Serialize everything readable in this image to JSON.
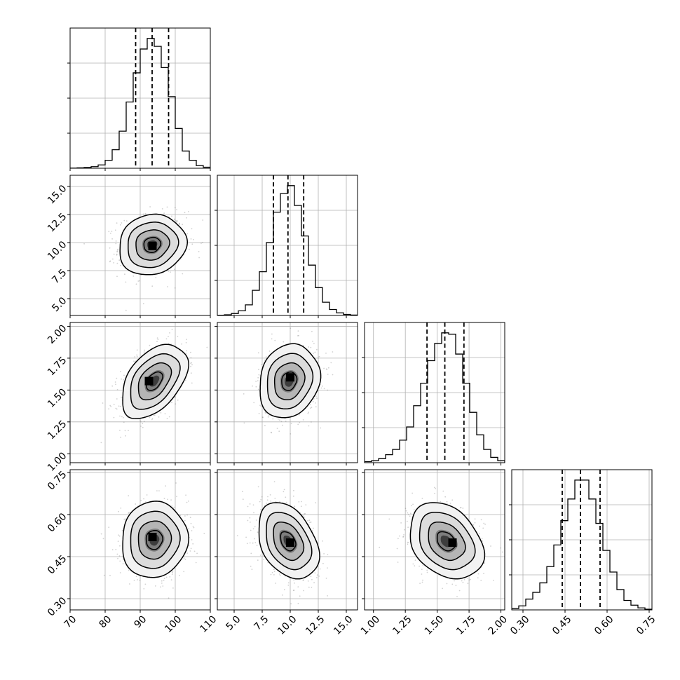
{
  "chart_data": {
    "type": "corner",
    "grid": true,
    "parameters": [
      {
        "range": [
          70,
          110
        ],
        "ticks": [
          "70",
          "80",
          "90",
          "100",
          "110"
        ],
        "tick_values": [
          70,
          80,
          90,
          100,
          110
        ],
        "quantiles": [
          88.7,
          93.4,
          98.1
        ],
        "histogram": {
          "bin_edges": [
            70,
            72,
            74,
            76,
            78,
            80,
            82,
            84,
            86,
            88,
            90,
            92,
            94,
            96,
            98,
            100,
            102,
            104,
            106,
            108,
            110
          ],
          "heights": [
            0.1,
            0.3,
            0.6,
            1.2,
            2.5,
            6.0,
            14.0,
            28.0,
            50.0,
            72.0,
            90.0,
            98.0,
            92.0,
            76.0,
            54.0,
            30.0,
            13.0,
            6.0,
            2.0,
            0.8
          ]
        }
      },
      {
        "range": [
          3.5,
          16
        ],
        "ticks": [
          "5.0",
          "7.5",
          "10.0",
          "12.5",
          "15.0"
        ],
        "tick_values": [
          5.0,
          7.5,
          10.0,
          12.5,
          15.0
        ],
        "quantiles": [
          8.5,
          9.8,
          11.2
        ],
        "histogram": {
          "bin_edges": [
            3.5,
            4.125,
            4.75,
            5.375,
            6.0,
            6.625,
            7.25,
            7.875,
            8.5,
            9.125,
            9.75,
            10.375,
            11.0,
            11.625,
            12.25,
            12.875,
            13.5,
            14.125,
            14.75,
            15.375,
            16.0
          ],
          "heights": [
            0.2,
            0.5,
            1.5,
            3.5,
            8.0,
            19.0,
            33.0,
            55.0,
            78.0,
            92.0,
            98.0,
            83.0,
            60.0,
            38.0,
            21.0,
            10.0,
            4.5,
            2.0,
            0.8,
            0.3
          ]
        }
      },
      {
        "range": [
          0.93,
          2.03
        ],
        "ticks": [
          "1.00",
          "1.25",
          "1.50",
          "1.75",
          "2.00"
        ],
        "tick_values": [
          1.0,
          1.25,
          1.5,
          1.75,
          2.0
        ],
        "quantiles": [
          1.42,
          1.56,
          1.71
        ],
        "histogram": {
          "bin_edges": [
            0.93,
            0.985,
            1.04,
            1.095,
            1.15,
            1.205,
            1.26,
            1.315,
            1.37,
            1.425,
            1.48,
            1.535,
            1.59,
            1.645,
            1.7,
            1.755,
            1.81,
            1.865,
            1.92,
            1.975,
            2.03
          ],
          "heights": [
            0.8,
            1.5,
            3.0,
            6.0,
            10.0,
            17.0,
            27.0,
            43.0,
            60.0,
            77.0,
            90.0,
            98.0,
            97.0,
            82.0,
            60.0,
            38.0,
            21.0,
            10.0,
            4.0,
            1.5
          ]
        }
      },
      {
        "range": [
          0.26,
          0.76
        ],
        "ticks": [
          "0.30",
          "0.45",
          "0.60",
          "0.75"
        ],
        "tick_values": [
          0.3,
          0.45,
          0.6,
          0.75
        ],
        "quantiles": [
          0.44,
          0.505,
          0.575
        ],
        "histogram": {
          "bin_edges": [
            0.26,
            0.285,
            0.31,
            0.335,
            0.36,
            0.385,
            0.41,
            0.435,
            0.46,
            0.485,
            0.51,
            0.535,
            0.56,
            0.585,
            0.61,
            0.635,
            0.66,
            0.685,
            0.71,
            0.735,
            0.76
          ],
          "heights": [
            1.0,
            3.0,
            8.0,
            13.0,
            20.0,
            32.0,
            48.0,
            66.0,
            82.0,
            96.0,
            96.0,
            82.0,
            64.0,
            44.0,
            28.0,
            15.0,
            7.0,
            3.5,
            1.5,
            0.5
          ]
        }
      }
    ],
    "pairs": [
      {
        "x": 0,
        "y": 1,
        "center": [
          93.4,
          9.8
        ],
        "sigma": [
          4.8,
          1.35
        ],
        "rho": 0.1,
        "peak": [
          93.5,
          9.7
        ]
      },
      {
        "x": 0,
        "y": 2,
        "center": [
          94.0,
          1.57
        ],
        "sigma": [
          4.7,
          0.145
        ],
        "rho": 0.45,
        "peak": [
          92.5,
          1.57
        ]
      },
      {
        "x": 1,
        "y": 2,
        "center": [
          9.9,
          1.57
        ],
        "sigma": [
          1.35,
          0.145
        ],
        "rho": 0.15,
        "peak": [
          10.0,
          1.6
        ]
      },
      {
        "x": 0,
        "y": 3,
        "center": [
          94.0,
          0.51
        ],
        "sigma": [
          4.7,
          0.068
        ],
        "rho": 0.05,
        "peak": [
          93.5,
          0.52
        ]
      },
      {
        "x": 1,
        "y": 3,
        "center": [
          9.8,
          0.505
        ],
        "sigma": [
          1.35,
          0.068
        ],
        "rho": -0.35,
        "peak": [
          10.0,
          0.5
        ]
      },
      {
        "x": 2,
        "y": 3,
        "center": [
          1.57,
          0.505
        ],
        "sigma": [
          0.145,
          0.068
        ],
        "rho": -0.3,
        "peak": [
          1.62,
          0.5
        ]
      }
    ],
    "contour_levels_sigma": [
      0.5,
      1.0,
      1.5,
      2.0
    ]
  }
}
